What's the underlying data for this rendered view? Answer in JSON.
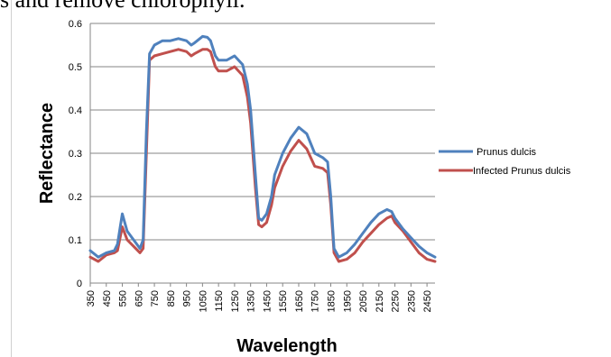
{
  "caption": "s and remove chlorophyll.",
  "chart_data": {
    "type": "line",
    "xlabel": "Wavelength",
    "ylabel": "Reflectance",
    "ylim": [
      0,
      0.6
    ],
    "yticks": [
      "0",
      "0.1",
      "0.2",
      "0.3",
      "0.4",
      "0.5",
      "0.6"
    ],
    "xticks": [
      "350",
      "450",
      "550",
      "650",
      "750",
      "850",
      "950",
      "1050",
      "1150",
      "1250",
      "1350",
      "1450",
      "1550",
      "1650",
      "1750",
      "1850",
      "1950",
      "2050",
      "2150",
      "2250",
      "2350",
      "2450"
    ],
    "grid": "horizontal",
    "legend_position": "right",
    "series": [
      {
        "name": "Prunus dulcis",
        "color": "#4F81BD",
        "x": [
          350,
          400,
          450,
          500,
          520,
          550,
          580,
          620,
          660,
          680,
          700,
          720,
          750,
          800,
          850,
          900,
          950,
          980,
          1000,
          1050,
          1080,
          1100,
          1130,
          1150,
          1200,
          1250,
          1300,
          1330,
          1350,
          1380,
          1400,
          1420,
          1450,
          1480,
          1500,
          1550,
          1600,
          1650,
          1700,
          1750,
          1800,
          1830,
          1850,
          1870,
          1900,
          1950,
          2000,
          2050,
          2100,
          2150,
          2200,
          2230,
          2250,
          2300,
          2350,
          2400,
          2450,
          2500
        ],
        "values": [
          0.075,
          0.06,
          0.07,
          0.075,
          0.09,
          0.16,
          0.12,
          0.1,
          0.08,
          0.1,
          0.35,
          0.53,
          0.55,
          0.56,
          0.56,
          0.565,
          0.56,
          0.55,
          0.555,
          0.57,
          0.568,
          0.56,
          0.525,
          0.515,
          0.515,
          0.525,
          0.505,
          0.46,
          0.4,
          0.25,
          0.15,
          0.145,
          0.16,
          0.2,
          0.25,
          0.3,
          0.335,
          0.36,
          0.345,
          0.3,
          0.29,
          0.28,
          0.2,
          0.08,
          0.06,
          0.07,
          0.09,
          0.115,
          0.14,
          0.16,
          0.17,
          0.165,
          0.15,
          0.125,
          0.105,
          0.085,
          0.07,
          0.06
        ]
      },
      {
        "name": "Infected Prunus dulcis",
        "color": "#C0504D",
        "x": [
          350,
          400,
          450,
          500,
          520,
          550,
          580,
          620,
          660,
          680,
          700,
          720,
          750,
          800,
          850,
          900,
          950,
          980,
          1000,
          1050,
          1080,
          1100,
          1130,
          1150,
          1200,
          1250,
          1300,
          1330,
          1350,
          1380,
          1400,
          1420,
          1450,
          1480,
          1500,
          1550,
          1600,
          1650,
          1700,
          1750,
          1800,
          1830,
          1850,
          1870,
          1900,
          1950,
          2000,
          2050,
          2100,
          2150,
          2200,
          2230,
          2250,
          2300,
          2350,
          2400,
          2450,
          2500
        ],
        "values": [
          0.06,
          0.05,
          0.065,
          0.07,
          0.075,
          0.13,
          0.1,
          0.085,
          0.07,
          0.08,
          0.3,
          0.515,
          0.525,
          0.53,
          0.535,
          0.54,
          0.535,
          0.525,
          0.53,
          0.54,
          0.54,
          0.535,
          0.5,
          0.49,
          0.49,
          0.5,
          0.48,
          0.43,
          0.37,
          0.22,
          0.135,
          0.13,
          0.14,
          0.18,
          0.22,
          0.27,
          0.305,
          0.33,
          0.31,
          0.27,
          0.265,
          0.255,
          0.18,
          0.07,
          0.05,
          0.055,
          0.07,
          0.095,
          0.115,
          0.135,
          0.15,
          0.155,
          0.14,
          0.12,
          0.095,
          0.07,
          0.055,
          0.05
        ]
      }
    ]
  }
}
